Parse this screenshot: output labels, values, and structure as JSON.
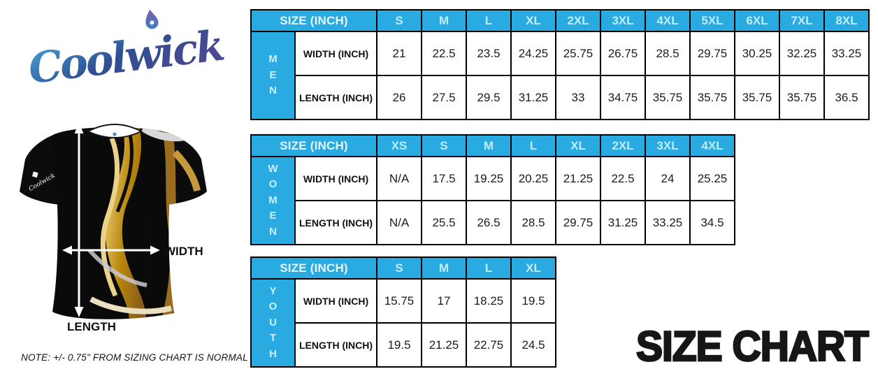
{
  "brand": {
    "logo_text": "Coolwick"
  },
  "title": "SIZE CHART",
  "note": "NOTE: +/- 0.75\" FROM SIZING CHART IS NORMAL",
  "diagram": {
    "width_label": "WIDTH",
    "length_label": "LENGTH"
  },
  "colors": {
    "header_blue": "#29ABE2",
    "header_text_light": "#E4F7FF",
    "size_label_cyan": "#BFECFF",
    "table_border": "#000000",
    "title_black": "#161616",
    "marble_gold": "#C9972F",
    "logo_gradient": [
      "#46A5D6",
      "#2E4F92",
      "#4B4992"
    ]
  },
  "tables": [
    {
      "group": "MEN",
      "header": "SIZE (INCH)",
      "sizes": [
        "S",
        "M",
        "L",
        "XL",
        "2XL",
        "3XL",
        "4XL",
        "5XL",
        "6XL",
        "7XL",
        "8XL"
      ],
      "rows": [
        {
          "label": "WIDTH (INCH)",
          "values": [
            "21",
            "22.5",
            "23.5",
            "24.25",
            "25.75",
            "26.75",
            "28.5",
            "29.75",
            "30.25",
            "32.25",
            "33.25"
          ]
        },
        {
          "label": "LENGTH (INCH)",
          "values": [
            "26",
            "27.5",
            "29.5",
            "31.25",
            "33",
            "34.75",
            "35.75",
            "35.75",
            "35.75",
            "35.75",
            "36.5"
          ]
        }
      ]
    },
    {
      "group": "WOMEN",
      "header": "SIZE (INCH)",
      "sizes": [
        "XS",
        "S",
        "M",
        "L",
        "XL",
        "2XL",
        "3XL",
        "4XL"
      ],
      "rows": [
        {
          "label": "WIDTH (INCH)",
          "values": [
            "N/A",
            "17.5",
            "19.25",
            "20.25",
            "21.25",
            "22.5",
            "24",
            "25.25"
          ]
        },
        {
          "label": "LENGTH (INCH)",
          "values": [
            "N/A",
            "25.5",
            "26.5",
            "28.5",
            "29.75",
            "31.25",
            "33.25",
            "34.5"
          ]
        }
      ]
    },
    {
      "group": "YOUTH",
      "header": "SIZE (INCH)",
      "sizes": [
        "S",
        "M",
        "L",
        "XL"
      ],
      "rows": [
        {
          "label": "WIDTH (INCH)",
          "values": [
            "15.75",
            "17",
            "18.25",
            "19.5"
          ]
        },
        {
          "label": "LENGTH (INCH)",
          "values": [
            "19.5",
            "21.25",
            "22.75",
            "24.5"
          ]
        }
      ]
    }
  ]
}
